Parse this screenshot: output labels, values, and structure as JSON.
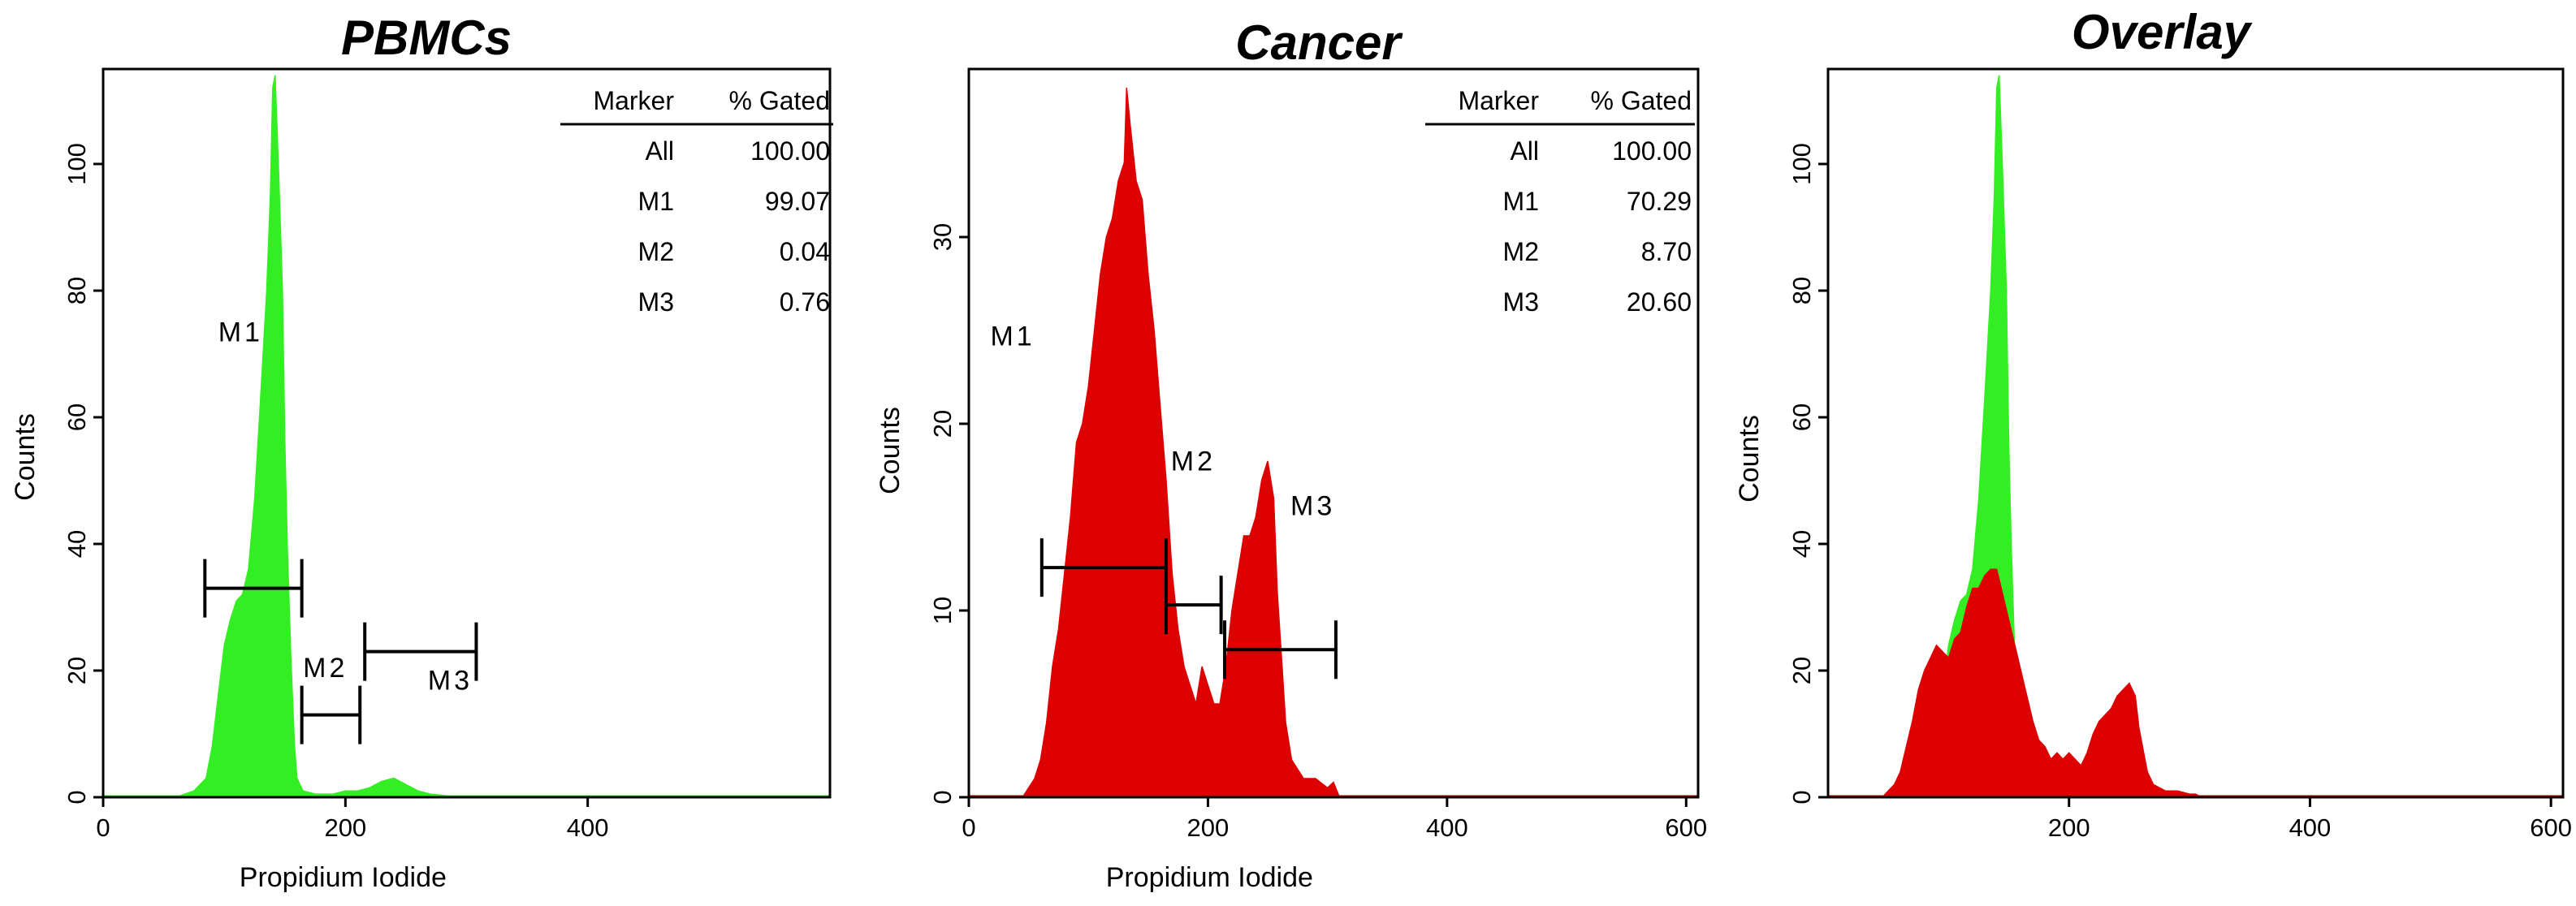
{
  "chart_data": [
    {
      "type": "histogram",
      "title": "PBMCs",
      "xlabel": "Propidium Iodide",
      "ylabel": "Counts",
      "xlim": [
        0,
        600
      ],
      "ylim": [
        0,
        115
      ],
      "xticks": [
        0,
        200,
        400
      ],
      "yticks": [
        0,
        20,
        40,
        60,
        80,
        100
      ],
      "series": [
        {
          "name": "PBMCs",
          "color": "#33ee22",
          "points": [
            [
              0,
              0
            ],
            [
              60,
              0
            ],
            [
              75,
              1
            ],
            [
              85,
              3
            ],
            [
              90,
              8
            ],
            [
              95,
              16
            ],
            [
              100,
              24
            ],
            [
              105,
              28
            ],
            [
              110,
              31
            ],
            [
              115,
              32
            ],
            [
              120,
              36
            ],
            [
              125,
              47
            ],
            [
              130,
              63
            ],
            [
              135,
              80
            ],
            [
              138,
              95
            ],
            [
              140,
              112
            ],
            [
              142,
              114
            ],
            [
              145,
              98
            ],
            [
              148,
              80
            ],
            [
              150,
              56
            ],
            [
              152,
              40
            ],
            [
              155,
              22
            ],
            [
              158,
              8
            ],
            [
              160,
              3
            ],
            [
              165,
              1
            ],
            [
              175,
              0.5
            ],
            [
              190,
              0.5
            ],
            [
              200,
              1
            ],
            [
              210,
              1
            ],
            [
              220,
              1.5
            ],
            [
              230,
              2.5
            ],
            [
              240,
              3
            ],
            [
              250,
              2
            ],
            [
              260,
              1
            ],
            [
              270,
              0.5
            ],
            [
              285,
              0.2
            ],
            [
              600,
              0
            ]
          ]
        }
      ],
      "markers": [
        {
          "name": "M1",
          "x": [
            84,
            164
          ],
          "y": 33
        },
        {
          "name": "M2",
          "x": [
            164,
            212
          ],
          "y": 13
        },
        {
          "name": "M3",
          "x": [
            216,
            308
          ],
          "y": 23
        }
      ],
      "marker_labels": [
        {
          "text": "M1",
          "x": 95,
          "y": 72
        },
        {
          "text": "M2",
          "x": 165,
          "y": 19
        },
        {
          "text": "M3",
          "x": 268,
          "y": 17
        }
      ],
      "table": {
        "headers": [
          "Marker",
          "% Gated"
        ],
        "rows": [
          [
            "All",
            "100.00"
          ],
          [
            "M1",
            "99.07"
          ],
          [
            "M2",
            "0.04"
          ],
          [
            "M3",
            "0.76"
          ]
        ]
      }
    },
    {
      "type": "histogram",
      "title": "Cancer",
      "xlabel": "Propidium Iodide",
      "ylabel": "Counts",
      "xlim": [
        0,
        610
      ],
      "ylim": [
        0,
        39
      ],
      "xticks": [
        0,
        200,
        400,
        600
      ],
      "yticks": [
        0,
        10,
        20,
        30
      ],
      "series": [
        {
          "name": "Cancer",
          "color": "#dd0000",
          "points": [
            [
              0,
              0
            ],
            [
              45,
              0
            ],
            [
              50,
              0.5
            ],
            [
              55,
              1
            ],
            [
              60,
              2
            ],
            [
              65,
              4
            ],
            [
              70,
              7
            ],
            [
              75,
              9
            ],
            [
              80,
              12
            ],
            [
              85,
              15
            ],
            [
              90,
              19
            ],
            [
              95,
              20
            ],
            [
              100,
              22
            ],
            [
              105,
              25
            ],
            [
              110,
              28
            ],
            [
              115,
              30
            ],
            [
              120,
              31
            ],
            [
              125,
              33
            ],
            [
              130,
              34
            ],
            [
              132,
              38
            ],
            [
              135,
              36
            ],
            [
              140,
              33
            ],
            [
              145,
              32
            ],
            [
              150,
              28
            ],
            [
              155,
              25
            ],
            [
              160,
              21
            ],
            [
              165,
              17
            ],
            [
              170,
              12
            ],
            [
              175,
              9
            ],
            [
              180,
              7
            ],
            [
              185,
              6
            ],
            [
              190,
              5
            ],
            [
              195,
              7
            ],
            [
              200,
              6
            ],
            [
              205,
              5
            ],
            [
              210,
              5
            ],
            [
              215,
              7
            ],
            [
              220,
              10
            ],
            [
              225,
              12
            ],
            [
              230,
              14
            ],
            [
              235,
              14
            ],
            [
              240,
              15
            ],
            [
              245,
              17
            ],
            [
              250,
              18
            ],
            [
              255,
              16
            ],
            [
              258,
              11
            ],
            [
              262,
              7
            ],
            [
              265,
              4
            ],
            [
              270,
              2
            ],
            [
              280,
              1
            ],
            [
              290,
              1
            ],
            [
              300,
              0.5
            ],
            [
              305,
              0.8
            ],
            [
              310,
              0
            ],
            [
              610,
              0
            ]
          ]
        }
      ],
      "markers": [
        {
          "name": "M1",
          "x": [
            61,
            165
          ],
          "y": 12.3
        },
        {
          "name": "M2",
          "x": [
            165,
            211
          ],
          "y": 10.3
        },
        {
          "name": "M3",
          "x": [
            214,
            307
          ],
          "y": 7.9
        }
      ],
      "marker_labels": [
        {
          "text": "M1",
          "x": 18,
          "y": 24.2
        },
        {
          "text": "M2",
          "x": 169,
          "y": 17.5
        },
        {
          "text": "M3",
          "x": 269,
          "y": 15.1
        }
      ],
      "table": {
        "headers": [
          "Marker",
          "% Gated"
        ],
        "rows": [
          [
            "All",
            "100.00"
          ],
          [
            "M1",
            "70.29"
          ],
          [
            "M2",
            "8.70"
          ],
          [
            "M3",
            "20.60"
          ]
        ]
      }
    },
    {
      "type": "histogram",
      "title": "Overlay",
      "xlabel": "",
      "ylabel": "Counts",
      "xlim": [
        0,
        610
      ],
      "ylim": [
        0,
        115
      ],
      "xticks": [
        200,
        400,
        600
      ],
      "yticks": [
        0,
        20,
        40,
        60,
        80,
        100
      ],
      "series": [
        {
          "name": "PBMCs",
          "color": "#33ee22",
          "points": [
            [
              0,
              0
            ],
            [
              60,
              0
            ],
            [
              75,
              1
            ],
            [
              85,
              3
            ],
            [
              90,
              8
            ],
            [
              95,
              16
            ],
            [
              100,
              24
            ],
            [
              105,
              28
            ],
            [
              110,
              31
            ],
            [
              115,
              32
            ],
            [
              120,
              36
            ],
            [
              125,
              47
            ],
            [
              130,
              63
            ],
            [
              135,
              80
            ],
            [
              138,
              95
            ],
            [
              140,
              112
            ],
            [
              142,
              114
            ],
            [
              145,
              98
            ],
            [
              148,
              80
            ],
            [
              150,
              56
            ],
            [
              152,
              40
            ],
            [
              155,
              22
            ],
            [
              158,
              8
            ],
            [
              160,
              3
            ],
            [
              165,
              1
            ],
            [
              175,
              0.5
            ],
            [
              190,
              0.5
            ],
            [
              200,
              1
            ],
            [
              210,
              1
            ],
            [
              220,
              1.5
            ],
            [
              230,
              2.5
            ],
            [
              240,
              3
            ],
            [
              250,
              2
            ],
            [
              260,
              1
            ],
            [
              270,
              0.5
            ],
            [
              285,
              0.2
            ],
            [
              610,
              0
            ]
          ]
        },
        {
          "name": "Cancer",
          "color": "#dd0000",
          "points": [
            [
              0,
              0
            ],
            [
              45,
              0
            ],
            [
              50,
              1
            ],
            [
              55,
              2
            ],
            [
              60,
              4
            ],
            [
              65,
              8
            ],
            [
              70,
              12
            ],
            [
              75,
              17
            ],
            [
              80,
              20
            ],
            [
              85,
              22
            ],
            [
              90,
              24
            ],
            [
              95,
              23
            ],
            [
              100,
              22
            ],
            [
              105,
              25
            ],
            [
              110,
              26
            ],
            [
              115,
              30
            ],
            [
              120,
              33
            ],
            [
              125,
              33
            ],
            [
              130,
              35
            ],
            [
              135,
              36
            ],
            [
              140,
              36
            ],
            [
              145,
              32
            ],
            [
              150,
              28
            ],
            [
              155,
              24
            ],
            [
              160,
              20
            ],
            [
              165,
              16
            ],
            [
              170,
              12
            ],
            [
              175,
              9
            ],
            [
              180,
              8
            ],
            [
              185,
              6
            ],
            [
              190,
              7
            ],
            [
              195,
              6
            ],
            [
              200,
              7
            ],
            [
              205,
              6
            ],
            [
              210,
              5
            ],
            [
              215,
              7
            ],
            [
              220,
              10
            ],
            [
              225,
              12
            ],
            [
              230,
              13
            ],
            [
              235,
              14
            ],
            [
              240,
              16
            ],
            [
              245,
              17
            ],
            [
              250,
              18
            ],
            [
              255,
              16
            ],
            [
              258,
              11
            ],
            [
              262,
              7
            ],
            [
              265,
              4
            ],
            [
              270,
              2
            ],
            [
              280,
              1
            ],
            [
              290,
              1
            ],
            [
              300,
              0.5
            ],
            [
              305,
              0.5
            ],
            [
              310,
              0
            ],
            [
              610,
              0
            ]
          ]
        }
      ],
      "markers": [],
      "marker_labels": [],
      "table": null
    }
  ]
}
